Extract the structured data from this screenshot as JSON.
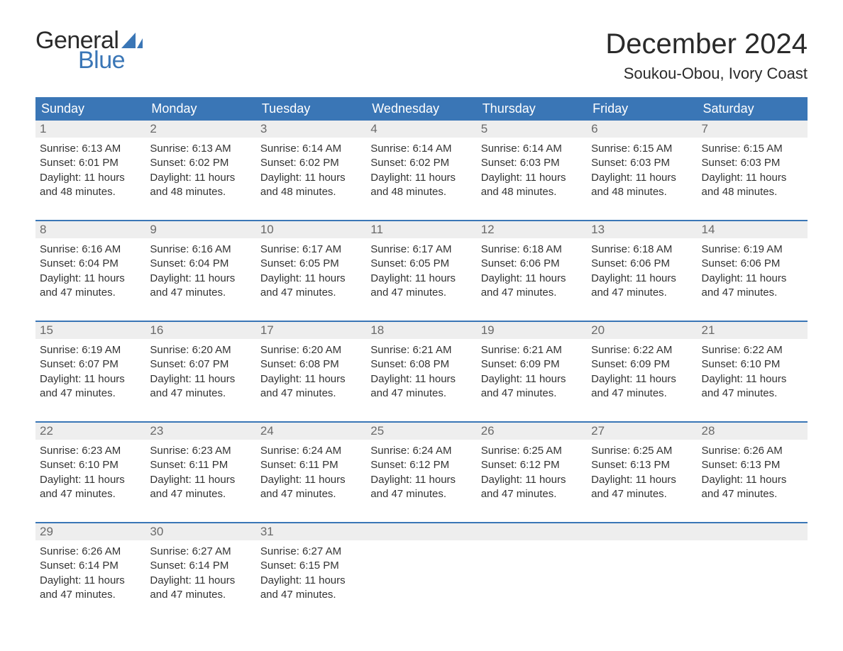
{
  "brand": {
    "word1": "General",
    "word2": "Blue",
    "sail_color": "#3a76b6"
  },
  "title": "December 2024",
  "location": "Soukou-Obou, Ivory Coast",
  "colors": {
    "header_bg": "#3a76b6",
    "header_text": "#ffffff",
    "daynum_bg": "#eeeeee",
    "daynum_text": "#6a6a6a",
    "body_text": "#333333",
    "page_bg": "#ffffff"
  },
  "typography": {
    "title_fontsize": 40,
    "location_fontsize": 22,
    "weekday_fontsize": 18,
    "daynum_fontsize": 17,
    "detail_fontsize": 15
  },
  "weekdays": [
    "Sunday",
    "Monday",
    "Tuesday",
    "Wednesday",
    "Thursday",
    "Friday",
    "Saturday"
  ],
  "weeks": [
    [
      {
        "day": "1",
        "sunrise": "6:13 AM",
        "sunset": "6:01 PM",
        "daylight": "11 hours and 48 minutes."
      },
      {
        "day": "2",
        "sunrise": "6:13 AM",
        "sunset": "6:02 PM",
        "daylight": "11 hours and 48 minutes."
      },
      {
        "day": "3",
        "sunrise": "6:14 AM",
        "sunset": "6:02 PM",
        "daylight": "11 hours and 48 minutes."
      },
      {
        "day": "4",
        "sunrise": "6:14 AM",
        "sunset": "6:02 PM",
        "daylight": "11 hours and 48 minutes."
      },
      {
        "day": "5",
        "sunrise": "6:14 AM",
        "sunset": "6:03 PM",
        "daylight": "11 hours and 48 minutes."
      },
      {
        "day": "6",
        "sunrise": "6:15 AM",
        "sunset": "6:03 PM",
        "daylight": "11 hours and 48 minutes."
      },
      {
        "day": "7",
        "sunrise": "6:15 AM",
        "sunset": "6:03 PM",
        "daylight": "11 hours and 48 minutes."
      }
    ],
    [
      {
        "day": "8",
        "sunrise": "6:16 AM",
        "sunset": "6:04 PM",
        "daylight": "11 hours and 47 minutes."
      },
      {
        "day": "9",
        "sunrise": "6:16 AM",
        "sunset": "6:04 PM",
        "daylight": "11 hours and 47 minutes."
      },
      {
        "day": "10",
        "sunrise": "6:17 AM",
        "sunset": "6:05 PM",
        "daylight": "11 hours and 47 minutes."
      },
      {
        "day": "11",
        "sunrise": "6:17 AM",
        "sunset": "6:05 PM",
        "daylight": "11 hours and 47 minutes."
      },
      {
        "day": "12",
        "sunrise": "6:18 AM",
        "sunset": "6:06 PM",
        "daylight": "11 hours and 47 minutes."
      },
      {
        "day": "13",
        "sunrise": "6:18 AM",
        "sunset": "6:06 PM",
        "daylight": "11 hours and 47 minutes."
      },
      {
        "day": "14",
        "sunrise": "6:19 AM",
        "sunset": "6:06 PM",
        "daylight": "11 hours and 47 minutes."
      }
    ],
    [
      {
        "day": "15",
        "sunrise": "6:19 AM",
        "sunset": "6:07 PM",
        "daylight": "11 hours and 47 minutes."
      },
      {
        "day": "16",
        "sunrise": "6:20 AM",
        "sunset": "6:07 PM",
        "daylight": "11 hours and 47 minutes."
      },
      {
        "day": "17",
        "sunrise": "6:20 AM",
        "sunset": "6:08 PM",
        "daylight": "11 hours and 47 minutes."
      },
      {
        "day": "18",
        "sunrise": "6:21 AM",
        "sunset": "6:08 PM",
        "daylight": "11 hours and 47 minutes."
      },
      {
        "day": "19",
        "sunrise": "6:21 AM",
        "sunset": "6:09 PM",
        "daylight": "11 hours and 47 minutes."
      },
      {
        "day": "20",
        "sunrise": "6:22 AM",
        "sunset": "6:09 PM",
        "daylight": "11 hours and 47 minutes."
      },
      {
        "day": "21",
        "sunrise": "6:22 AM",
        "sunset": "6:10 PM",
        "daylight": "11 hours and 47 minutes."
      }
    ],
    [
      {
        "day": "22",
        "sunrise": "6:23 AM",
        "sunset": "6:10 PM",
        "daylight": "11 hours and 47 minutes."
      },
      {
        "day": "23",
        "sunrise": "6:23 AM",
        "sunset": "6:11 PM",
        "daylight": "11 hours and 47 minutes."
      },
      {
        "day": "24",
        "sunrise": "6:24 AM",
        "sunset": "6:11 PM",
        "daylight": "11 hours and 47 minutes."
      },
      {
        "day": "25",
        "sunrise": "6:24 AM",
        "sunset": "6:12 PM",
        "daylight": "11 hours and 47 minutes."
      },
      {
        "day": "26",
        "sunrise": "6:25 AM",
        "sunset": "6:12 PM",
        "daylight": "11 hours and 47 minutes."
      },
      {
        "day": "27",
        "sunrise": "6:25 AM",
        "sunset": "6:13 PM",
        "daylight": "11 hours and 47 minutes."
      },
      {
        "day": "28",
        "sunrise": "6:26 AM",
        "sunset": "6:13 PM",
        "daylight": "11 hours and 47 minutes."
      }
    ],
    [
      {
        "day": "29",
        "sunrise": "6:26 AM",
        "sunset": "6:14 PM",
        "daylight": "11 hours and 47 minutes."
      },
      {
        "day": "30",
        "sunrise": "6:27 AM",
        "sunset": "6:14 PM",
        "daylight": "11 hours and 47 minutes."
      },
      {
        "day": "31",
        "sunrise": "6:27 AM",
        "sunset": "6:15 PM",
        "daylight": "11 hours and 47 minutes."
      },
      null,
      null,
      null,
      null
    ]
  ],
  "labels": {
    "sunrise": "Sunrise:",
    "sunset": "Sunset:",
    "daylight": "Daylight:"
  }
}
